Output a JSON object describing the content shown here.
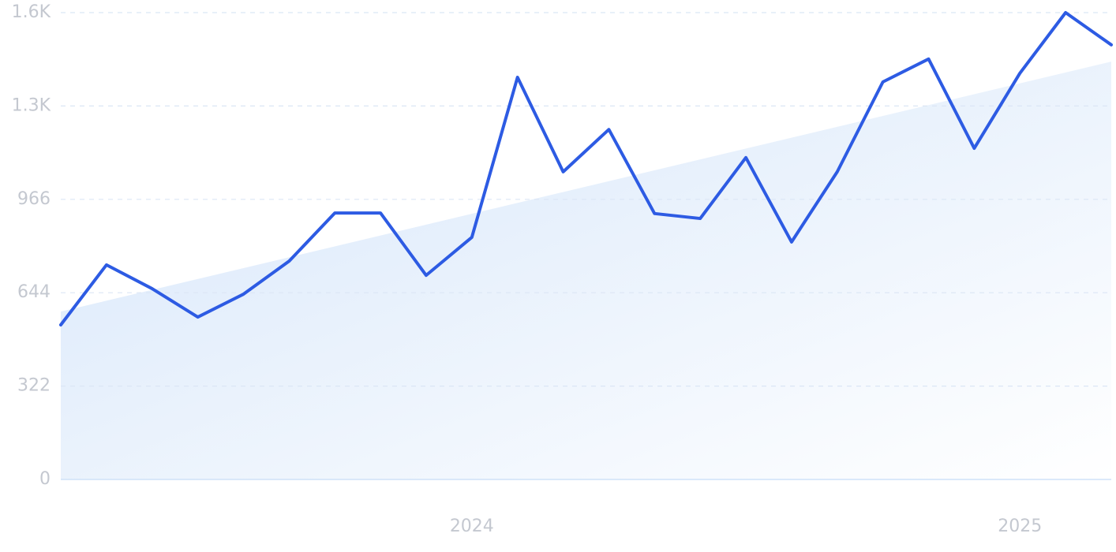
{
  "chart_data": {
    "type": "line",
    "categories": [
      null,
      null,
      null,
      null,
      null,
      null,
      null,
      null,
      null,
      "2024",
      null,
      null,
      null,
      null,
      null,
      null,
      null,
      null,
      null,
      null,
      null,
      "2025",
      null,
      null
    ],
    "series": [
      {
        "color": "#2d5be3",
        "values": [
          533,
          740,
          658,
          560,
          639,
          753,
          919,
          919,
          704,
          835,
          1387,
          1061,
          1207,
          917,
          900,
          1110,
          819,
          1061,
          1371,
          1450,
          1142,
          1401,
          1610,
          1499
        ]
      }
    ],
    "trend_values": [
      579,
      1441
    ],
    "trend_color": "#d6e6fa",
    "ylim": [
      0,
      1610
    ],
    "yticks": [
      0,
      322,
      644,
      966,
      {
        "value": 1288,
        "label": "1.3K"
      },
      {
        "value": 1610,
        "label": "1.6K"
      }
    ],
    "grid": true
  }
}
